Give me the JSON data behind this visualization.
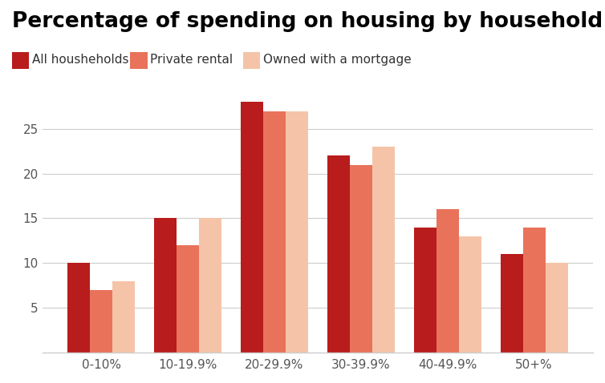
{
  "title": "Percentage of spending on housing by household type",
  "categories": [
    "0-10%",
    "10-19.9%",
    "20-29.9%",
    "30-39.9%",
    "40-49.9%",
    "50+%"
  ],
  "series": [
    {
      "label": "All housheholds",
      "values": [
        10,
        15,
        28,
        22,
        14,
        11
      ],
      "color": "#b81c1c"
    },
    {
      "label": "Private rental",
      "values": [
        7,
        12,
        27,
        21,
        16,
        14
      ],
      "color": "#e8735a"
    },
    {
      "label": "Owned with a mortgage",
      "values": [
        8,
        15,
        27,
        23,
        13,
        10
      ],
      "color": "#f5c4a8"
    }
  ],
  "ylim": [
    0,
    30
  ],
  "yticks": [
    5,
    10,
    15,
    20,
    25
  ],
  "background_color": "#ffffff",
  "grid_color": "#cccccc",
  "title_fontsize": 19,
  "legend_fontsize": 11,
  "tick_fontsize": 11,
  "bar_width": 0.26
}
